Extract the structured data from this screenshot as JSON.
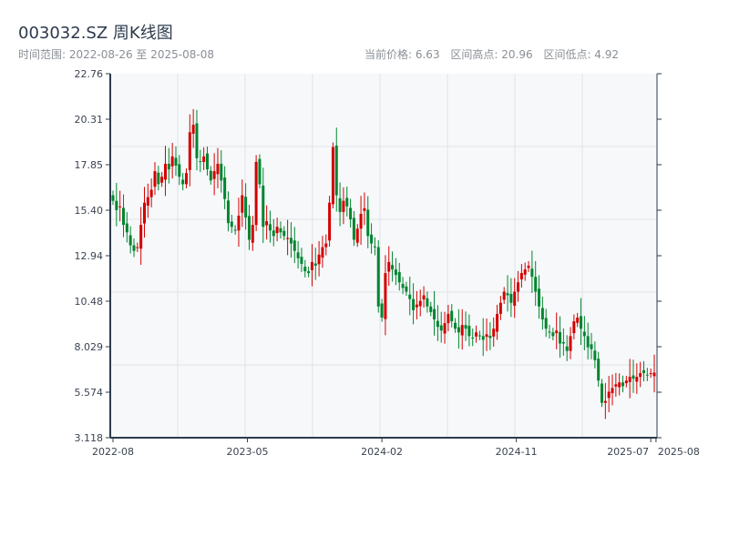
{
  "header": {
    "title": "003032.SZ 周K线图",
    "range": "时间范围: 2022-08-26 至 2025-08-08",
    "current_price": "当前价格: 6.63",
    "high": "区间高点: 20.96",
    "low": "区间低点: 4.92"
  },
  "colors": {
    "up": "#d40000",
    "down": "#00852f",
    "axis": "#2d3a4b",
    "plot_bg": "#f6f8fa",
    "grid": "#e0e3e8"
  },
  "chart_data": {
    "type": "candlestick",
    "title": "003032.SZ 周K线图",
    "start": "2022-08-26",
    "end": "2025-08-08",
    "ylim": [
      3.118,
      22.76
    ],
    "yticks": [
      "22.76",
      "20.31",
      "17.85",
      "15.40",
      "12.94",
      "10.48",
      "8.029",
      "5.574",
      "3.118"
    ],
    "xticks": [
      {
        "label": "2022-08",
        "index": 0
      },
      {
        "label": "2023-05",
        "index": 38.5
      },
      {
        "label": "2024-02",
        "index": 77
      },
      {
        "label": "2024-11",
        "index": 115.5
      },
      {
        "label": "2025-07",
        "index": 154
      },
      {
        "label": "2025-08",
        "index": 155.5
      }
    ],
    "close": [
      15.9,
      15.4,
      15.6,
      14.6,
      14.2,
      13.5,
      13.2,
      13.4,
      14.6,
      15.8,
      16.1,
      16.5,
      17.5,
      16.8,
      17.2,
      17.9,
      17.6,
      18.3,
      17.8,
      17.2,
      16.8,
      17.4,
      19.6,
      20.0,
      18.2,
      18.0,
      18.3,
      17.6,
      17.0,
      17.5,
      17.9,
      17.0,
      16.0,
      14.7,
      14.5,
      14.3,
      15.1,
      16.2,
      15.0,
      13.8,
      14.6,
      18.0,
      16.8,
      14.5,
      14.8,
      14.3,
      14.0,
      14.5,
      14.2,
      14.0,
      13.9,
      13.6,
      13.2,
      12.8,
      12.5,
      12.1,
      12.0,
      12.6,
      12.4,
      13.0,
      13.4,
      13.6,
      15.8,
      18.8,
      16.2,
      15.3,
      15.9,
      15.6,
      14.9,
      13.8,
      14.4,
      15.2,
      15.5,
      14.0,
      13.6,
      13.4,
      10.2,
      9.6,
      12.0,
      12.6,
      12.2,
      11.9,
      11.5,
      11.2,
      11.0,
      10.6,
      10.0,
      10.3,
      10.5,
      10.8,
      10.2,
      9.9,
      9.5,
      9.1,
      8.9,
      9.3,
      9.8,
      9.4,
      9.0,
      8.8,
      9.2,
      9.0,
      8.6,
      8.5,
      8.8,
      8.6,
      8.4,
      8.7,
      8.5,
      9.0,
      9.8,
      10.4,
      11.0,
      10.8,
      10.4,
      11.0,
      11.5,
      12.0,
      12.2,
      12.4,
      11.8,
      11.0,
      10.2,
      9.5,
      9.0,
      8.8,
      8.6,
      8.9,
      8.2,
      8.2,
      7.8,
      8.6,
      9.4,
      9.6,
      9.0,
      8.6,
      8.0,
      7.9,
      7.3,
      6.2,
      5.0,
      5.1,
      5.6,
      5.8,
      6.0,
      6.1,
      5.9,
      6.2,
      6.4,
      6.3,
      6.4,
      6.6,
      6.6,
      6.5,
      6.6,
      6.63
    ]
  }
}
